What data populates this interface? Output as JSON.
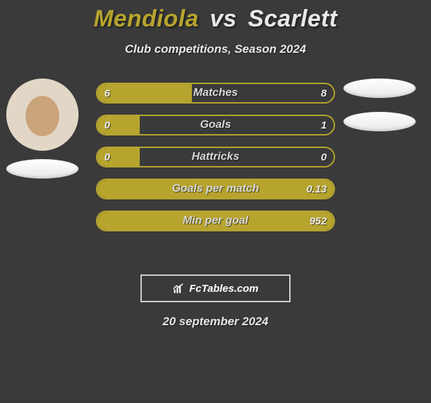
{
  "title": {
    "player1": "Mendiola",
    "vs": "vs",
    "player2": "Scarlett"
  },
  "subtitle": "Club competitions, Season 2024",
  "colors": {
    "accent": "#b6a42e",
    "background": "#3a3a3a",
    "text_light": "#e6e6e6",
    "white": "#ffffff",
    "bar_border": "#b6a42e"
  },
  "bars": [
    {
      "label": "Matches",
      "left": "6",
      "right": "8",
      "fill_pct": 40,
      "dominant": "left"
    },
    {
      "label": "Goals",
      "left": "0",
      "right": "1",
      "fill_pct": 18,
      "dominant": "right"
    },
    {
      "label": "Hattricks",
      "left": "0",
      "right": "0",
      "fill_pct": 18,
      "dominant": "none"
    },
    {
      "label": "Goals per match",
      "left": "",
      "right": "0.13",
      "fill_pct": 100,
      "dominant": "left"
    },
    {
      "label": "Min per goal",
      "left": "",
      "right": "952",
      "fill_pct": 100,
      "dominant": "left"
    }
  ],
  "logo_text": "FcTables.com",
  "date": "20 september 2024",
  "flags": {
    "left_visible": true,
    "right_count": 2
  }
}
